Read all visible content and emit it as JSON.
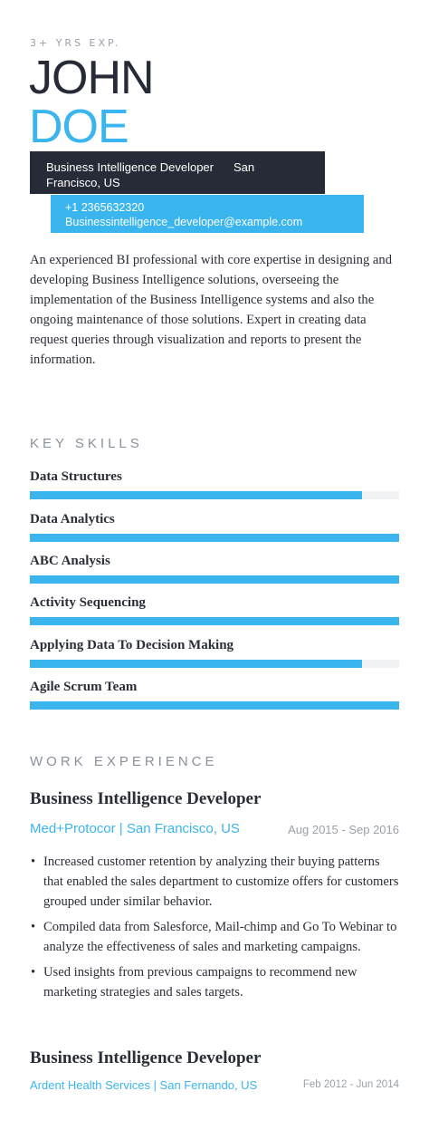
{
  "header": {
    "experience": "3+ YRS EXP.",
    "first_name": "JOHN",
    "last_name": "DOE",
    "role_line": "Business Intelligence Developer",
    "location_line1": "San",
    "location_line2": "Francisco, US",
    "phone": "+1 2365632320",
    "email": "Businessintelligence_developer@example.com"
  },
  "summary": "An experienced BI professional with core expertise in designing and developing Business Intelligence solutions, overseeing the implementation of the Business Intelligence systems and also the ongoing maintenance of those solutions. Expert in creating data request queries through visualization and reports to present the information.",
  "skills": {
    "title": "KEY SKILLS",
    "items": [
      {
        "label": "Data Structures",
        "level": 0.9
      },
      {
        "label": "Data Analytics",
        "level": 1.0
      },
      {
        "label": "ABC Analysis",
        "level": 1.0
      },
      {
        "label": "Activity Sequencing",
        "level": 1.0
      },
      {
        "label": "Applying Data To Decision Making",
        "level": 0.9
      },
      {
        "label": "Agile Scrum Team",
        "level": 1.0
      }
    ]
  },
  "experience": {
    "title": "WORK EXPERIENCE",
    "jobs": [
      {
        "title": "Business Intelligence Developer",
        "company": "Med+Protocor | San Francisco, US",
        "dates": "Aug 2015 - Sep 2016",
        "bullets": [
          "Increased customer retention by analyzing their buying patterns that enabled the sales department to customize offers for customers grouped under similar behavior.",
          "Compiled data from Salesforce, Mail-chimp and Go To Webinar to analyze the effectiveness of sales and marketing campaigns.",
          "Used insights from previous campaigns to recommend new marketing strategies and sales targets."
        ]
      },
      {
        "title": "Business Intelligence Developer",
        "company": "Ardent Health Services | San Fernando, US",
        "dates": "Feb 2012 - Jun 2014"
      }
    ]
  },
  "colors": {
    "accent": "#3ab5ee",
    "dark": "#272b37",
    "muted": "#9aa0a8"
  }
}
